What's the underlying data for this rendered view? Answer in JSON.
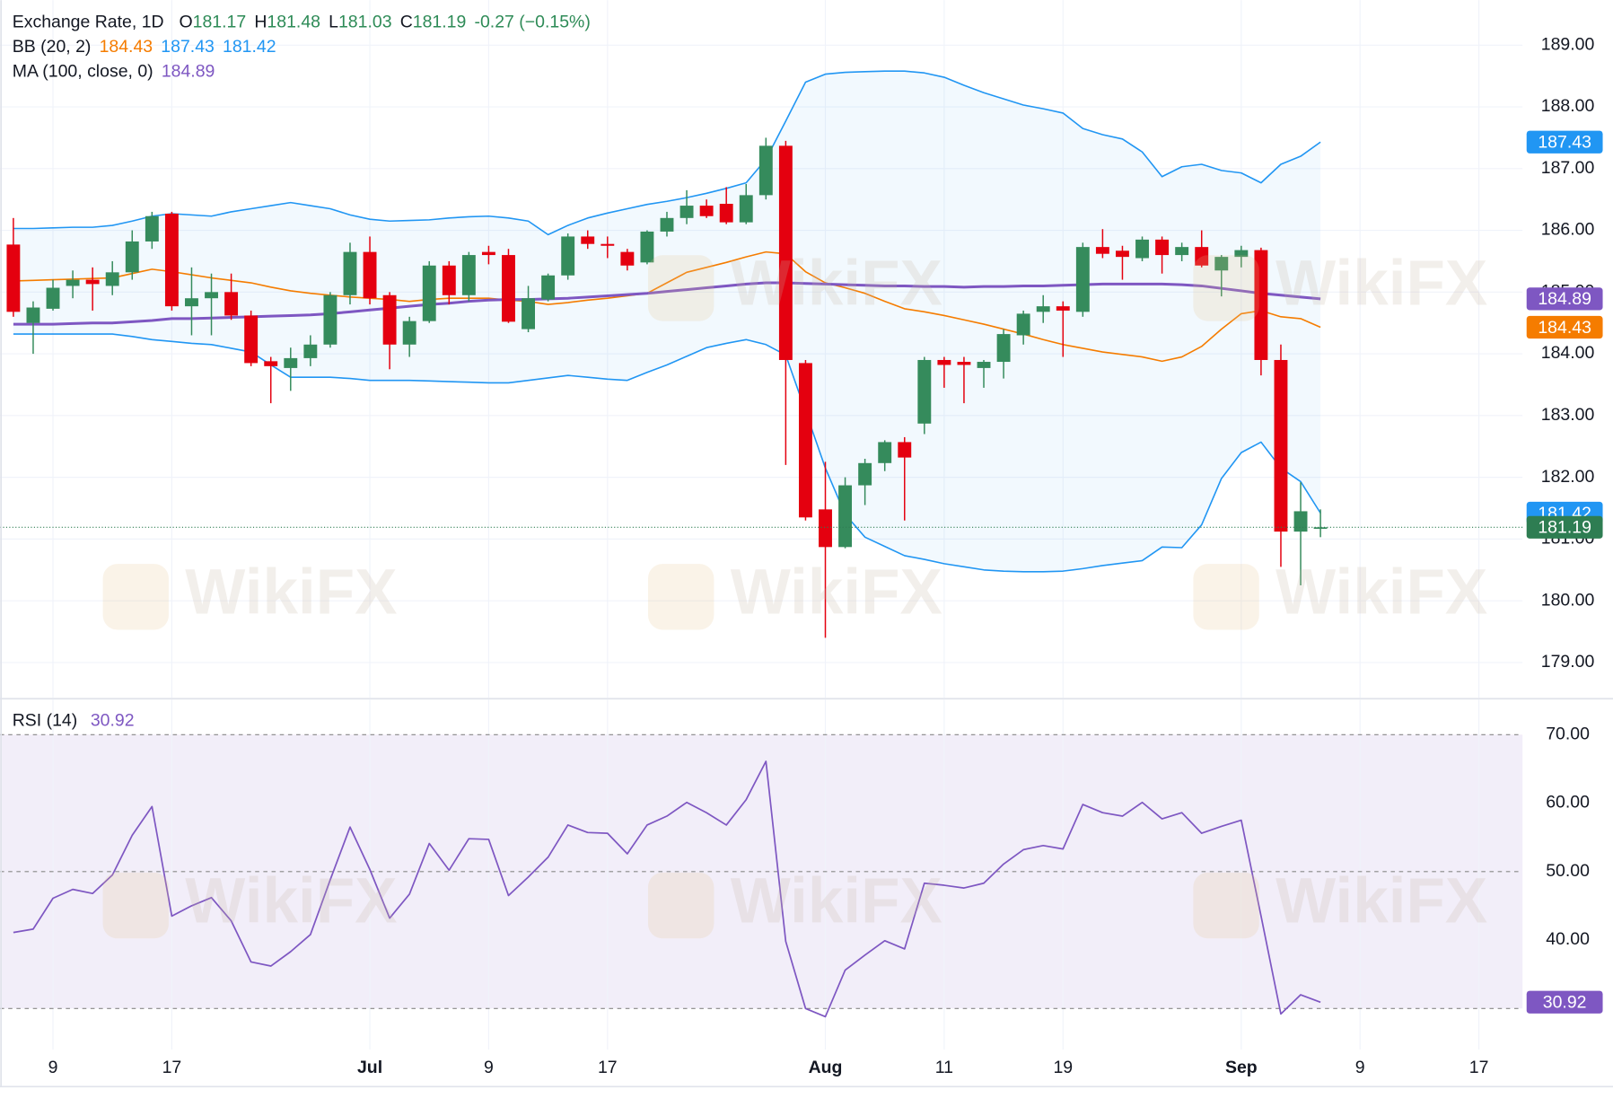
{
  "chart_data": [
    {
      "type": "candlestick",
      "title": "Exchange Rate, 1D",
      "watermark": "WikiFX",
      "ohlc_legend": [
        {
          "key": "O",
          "value": "181.17"
        },
        {
          "key": "H",
          "value": "181.48"
        },
        {
          "key": "L",
          "value": "181.03"
        },
        {
          "key": "C",
          "value": "181.19"
        }
      ],
      "change": "-0.27 (−0.15%)",
      "legend_color": "#2e8b57",
      "up_color": "#358b5c",
      "down_color": "#e4000f",
      "last_label": "181.19",
      "last_color": "#2e7d52",
      "xlim": [
        -0.675,
        76.2
      ],
      "ylim": [
        178.43,
        189.73
      ],
      "yticks": [
        {
          "value": 179,
          "label": "179.00"
        },
        {
          "value": 180,
          "label": "180.00"
        },
        {
          "value": 181,
          "label": "181.00"
        },
        {
          "value": 182,
          "label": "182.00"
        },
        {
          "value": 183,
          "label": "183.00"
        },
        {
          "value": 184,
          "label": "184.00"
        },
        {
          "value": 185,
          "label": "185.00"
        },
        {
          "value": 186,
          "label": "186.00"
        },
        {
          "value": 187,
          "label": "187.00"
        },
        {
          "value": 188,
          "label": "188.00"
        },
        {
          "value": 189,
          "label": "189.00"
        }
      ],
      "grid": true,
      "candles": {
        "open": [
          185.77,
          184.5,
          184.73,
          185.1,
          185.2,
          185.1,
          185.32,
          185.82,
          186.27,
          184.77,
          184.9,
          185.0,
          184.62,
          183.88,
          183.77,
          183.93,
          184.15,
          184.95,
          185.65,
          184.95,
          184.15,
          184.53,
          185.43,
          184.95,
          185.65,
          185.6,
          184.4,
          184.88,
          185.27,
          185.9,
          185.78,
          185.65,
          185.48,
          185.98,
          186.2,
          186.4,
          186.43,
          186.13,
          186.57,
          187.37,
          183.85,
          181.48,
          180.87,
          181.87,
          182.23,
          182.57,
          182.87,
          183.9,
          183.87,
          183.77,
          183.87,
          184.3,
          184.68,
          184.77,
          184.68,
          185.73,
          185.67,
          185.55,
          185.85,
          185.6,
          185.73,
          185.35,
          185.57,
          185.68,
          183.9,
          181.12,
          181.17
        ],
        "high": [
          186.2,
          184.85,
          185.2,
          185.35,
          185.4,
          185.5,
          186.0,
          186.3,
          186.3,
          185.4,
          185.3,
          185.3,
          184.7,
          183.95,
          184.1,
          184.3,
          185.0,
          185.8,
          185.9,
          185.0,
          184.6,
          185.5,
          185.5,
          185.65,
          185.75,
          185.7,
          185.1,
          185.3,
          185.95,
          186.0,
          185.9,
          185.7,
          186.0,
          186.3,
          186.65,
          186.5,
          186.7,
          186.75,
          187.5,
          187.45,
          183.9,
          182.25,
          182.0,
          182.3,
          182.6,
          182.65,
          183.95,
          183.95,
          183.95,
          183.9,
          184.4,
          184.7,
          184.95,
          184.85,
          185.8,
          186.02,
          185.75,
          185.9,
          185.9,
          185.8,
          186.0,
          185.6,
          185.75,
          185.72,
          184.15,
          181.92,
          181.48
        ],
        "low": [
          184.6,
          184.0,
          184.7,
          184.9,
          184.7,
          184.95,
          185.2,
          185.7,
          184.7,
          184.3,
          184.3,
          184.55,
          183.8,
          183.2,
          183.4,
          183.8,
          184.1,
          184.8,
          184.8,
          183.75,
          183.95,
          184.5,
          184.8,
          184.85,
          185.45,
          184.5,
          184.35,
          184.85,
          185.2,
          185.7,
          185.55,
          185.35,
          185.45,
          185.9,
          186.1,
          186.2,
          186.1,
          186.1,
          186.5,
          182.2,
          181.3,
          179.4,
          180.85,
          181.55,
          182.1,
          181.3,
          182.7,
          183.45,
          183.2,
          183.45,
          183.6,
          184.15,
          184.5,
          183.95,
          184.6,
          185.55,
          185.2,
          185.5,
          185.3,
          185.5,
          185.4,
          184.93,
          185.4,
          183.65,
          180.55,
          180.25,
          181.03
        ],
        "close": [
          184.68,
          184.75,
          185.07,
          185.2,
          185.13,
          185.32,
          185.82,
          186.23,
          184.77,
          184.9,
          185.0,
          184.62,
          183.85,
          183.8,
          183.93,
          184.15,
          184.95,
          185.65,
          184.9,
          184.15,
          184.53,
          185.43,
          184.95,
          185.6,
          185.6,
          184.52,
          184.9,
          185.27,
          185.9,
          185.78,
          185.75,
          185.43,
          185.98,
          186.2,
          186.4,
          186.23,
          186.13,
          186.57,
          187.37,
          183.9,
          181.35,
          180.87,
          181.87,
          182.23,
          182.57,
          182.32,
          183.9,
          183.82,
          183.82,
          183.87,
          184.32,
          184.65,
          184.77,
          184.7,
          185.73,
          185.62,
          185.57,
          185.85,
          185.6,
          185.73,
          185.43,
          185.57,
          185.68,
          183.9,
          181.12,
          181.45,
          181.19
        ]
      },
      "indicators": [
        {
          "name": "BB (20, 2)",
          "fill": "#2196f3",
          "lines": [
            {
              "color": "#f57c00",
              "last_label": "184.43",
              "values": [
                185.18,
                185.19,
                185.2,
                185.21,
                185.22,
                185.23,
                185.3,
                185.37,
                185.33,
                185.28,
                185.23,
                185.19,
                185.15,
                185.08,
                185.02,
                184.98,
                184.95,
                184.92,
                184.9,
                184.88,
                184.85,
                184.88,
                184.9,
                184.9,
                184.9,
                184.87,
                184.85,
                184.8,
                184.83,
                184.87,
                184.9,
                184.94,
                184.98,
                185.15,
                185.32,
                185.4,
                185.48,
                185.57,
                185.65,
                185.62,
                185.33,
                185.15,
                185.07,
                184.98,
                184.85,
                184.73,
                184.68,
                184.62,
                184.55,
                184.48,
                184.4,
                184.32,
                184.23,
                184.15,
                184.09,
                184.03,
                183.99,
                183.95,
                183.88,
                183.95,
                184.12,
                184.4,
                184.65,
                184.7,
                184.6,
                184.57,
                184.43
              ]
            },
            {
              "color": "#2196f3",
              "last_label": "187.43",
              "values": [
                186.03,
                186.03,
                186.04,
                186.05,
                186.05,
                186.08,
                186.15,
                186.23,
                186.27,
                186.25,
                186.23,
                186.3,
                186.35,
                186.4,
                186.45,
                186.4,
                186.35,
                186.25,
                186.18,
                186.15,
                186.16,
                186.17,
                186.2,
                186.22,
                186.23,
                186.2,
                186.15,
                185.93,
                186.08,
                186.2,
                186.28,
                186.35,
                186.42,
                186.47,
                186.53,
                186.6,
                186.68,
                186.77,
                187.15,
                187.77,
                188.4,
                188.53,
                188.56,
                188.57,
                188.58,
                188.58,
                188.55,
                188.48,
                188.35,
                188.23,
                188.13,
                188.03,
                187.97,
                187.9,
                187.65,
                187.55,
                187.48,
                187.27,
                186.87,
                187.03,
                187.07,
                186.97,
                186.93,
                186.77,
                187.07,
                187.2,
                187.43
              ]
            },
            {
              "color": "#2196f3",
              "last_label": "181.42",
              "values": [
                184.32,
                184.32,
                184.32,
                184.32,
                184.32,
                184.32,
                184.28,
                184.23,
                184.2,
                184.17,
                184.15,
                184.09,
                184.03,
                183.82,
                183.62,
                183.62,
                183.62,
                183.6,
                183.57,
                183.57,
                183.57,
                183.56,
                183.55,
                183.54,
                183.53,
                183.53,
                183.57,
                183.61,
                183.65,
                183.62,
                183.59,
                183.57,
                183.7,
                183.82,
                183.96,
                184.1,
                184.17,
                184.23,
                184.15,
                183.98,
                183.07,
                182.15,
                181.4,
                181.03,
                180.88,
                180.73,
                180.67,
                180.6,
                180.55,
                180.5,
                180.48,
                180.47,
                180.47,
                180.48,
                180.52,
                180.57,
                180.61,
                180.65,
                180.87,
                180.86,
                181.23,
                181.98,
                182.4,
                182.57,
                182.15,
                181.93,
                181.42
              ]
            }
          ]
        },
        {
          "name": "MA (100, close, 0)",
          "lines": [
            {
              "color": "#7e57c2",
              "last_label": "184.89",
              "values": [
                184.48,
                184.48,
                184.48,
                184.49,
                184.5,
                184.5,
                184.52,
                184.54,
                184.57,
                184.57,
                184.58,
                184.59,
                184.6,
                184.61,
                184.62,
                184.63,
                184.65,
                184.68,
                184.71,
                184.74,
                184.77,
                184.8,
                184.82,
                184.85,
                184.87,
                184.88,
                184.88,
                184.89,
                184.9,
                184.92,
                184.94,
                184.96,
                184.98,
                185.01,
                185.04,
                185.07,
                185.1,
                185.13,
                185.15,
                185.15,
                185.14,
                185.13,
                185.12,
                185.11,
                185.1,
                185.1,
                185.09,
                185.09,
                185.08,
                185.09,
                185.09,
                185.1,
                185.1,
                185.11,
                185.12,
                185.13,
                185.13,
                185.13,
                185.13,
                185.12,
                185.1,
                185.06,
                185.02,
                184.98,
                184.95,
                184.92,
                184.89
              ]
            }
          ]
        }
      ]
    },
    {
      "type": "line",
      "name": "RSI (14)",
      "color": "#7e57c2",
      "last_label": "30.92",
      "band_fill": "#7e57c2",
      "xlim": [
        -0.675,
        76.2
      ],
      "ylim": [
        24.0,
        75.1
      ],
      "yticks": [
        {
          "value": 40,
          "label": "40.00"
        },
        {
          "value": 50,
          "label": "50.00"
        },
        {
          "value": 60,
          "label": "60.00"
        },
        {
          "value": 70,
          "label": "70.00"
        }
      ],
      "bands": [
        30,
        50,
        70
      ],
      "xticks": [
        {
          "value": 2,
          "label": "9"
        },
        {
          "value": 8,
          "label": "17"
        },
        {
          "value": 18,
          "label": "Jul"
        },
        {
          "value": 24,
          "label": "9"
        },
        {
          "value": 30,
          "label": "17"
        },
        {
          "value": 41,
          "label": "Aug"
        },
        {
          "value": 47,
          "label": "11"
        },
        {
          "value": 53,
          "label": "19"
        },
        {
          "value": 62,
          "label": "Sep"
        },
        {
          "value": 68,
          "label": "9"
        },
        {
          "value": 74,
          "label": "17"
        }
      ],
      "values": [
        41.1,
        41.6,
        46.1,
        47.4,
        46.8,
        49.5,
        55.3,
        59.5,
        43.5,
        45.0,
        46.2,
        42.8,
        36.8,
        36.2,
        38.3,
        40.8,
        48.8,
        56.5,
        50.3,
        43.2,
        46.7,
        54.1,
        50.2,
        54.8,
        54.7,
        46.5,
        49.2,
        52.1,
        56.8,
        55.7,
        55.6,
        52.6,
        56.8,
        58.1,
        60.1,
        58.6,
        56.8,
        60.5,
        66.1,
        39.8,
        30.0,
        28.8,
        35.6,
        37.8,
        39.9,
        38.7,
        48.3,
        48.0,
        47.6,
        48.3,
        51.1,
        53.2,
        53.8,
        53.3,
        59.8,
        58.6,
        58.1,
        60.1,
        57.7,
        58.6,
        55.6,
        56.6,
        57.5,
        43.5,
        29.2,
        32.0,
        30.92
      ]
    }
  ]
}
